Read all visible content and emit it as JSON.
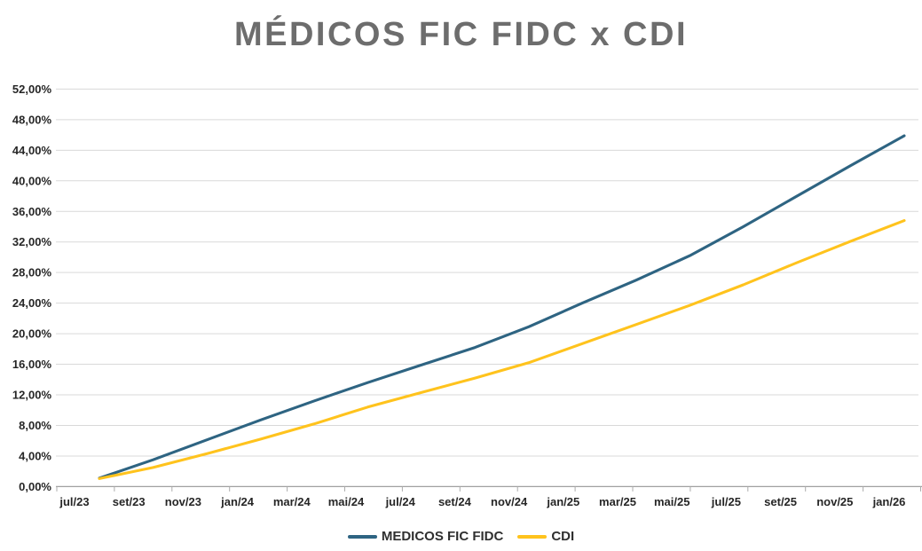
{
  "title": "MÉDICOS FIC FIDC x CDI",
  "chart_data": {
    "type": "line",
    "title": "MÉDICOS FIC FIDC x CDI",
    "categories": [
      "jul/23",
      "set/23",
      "nov/23",
      "jan/24",
      "mar/24",
      "mai/24",
      "jul/24",
      "set/24",
      "nov/24",
      "jan/25",
      "mar/25",
      "mai/25",
      "jul/25",
      "set/25",
      "nov/25",
      "jan/26"
    ],
    "series": [
      {
        "name": "MEDICOS FIC FIDC",
        "color": "#2E6482",
        "values": [
          1.1,
          3.5,
          6.1,
          8.7,
          11.2,
          13.6,
          15.9,
          18.2,
          20.9,
          24.0,
          27.0,
          30.2,
          34.0,
          38.0,
          42.0,
          45.9
        ]
      },
      {
        "name": "CDI",
        "color": "#FFC31D",
        "values": [
          1.05,
          2.5,
          4.3,
          6.2,
          8.2,
          10.4,
          12.3,
          14.2,
          16.2,
          18.7,
          21.2,
          23.7,
          26.4,
          29.3,
          32.1,
          34.8
        ]
      }
    ],
    "ylabel": "",
    "xlabel": "",
    "ylim": [
      0,
      52
    ],
    "y_tick_step": 4,
    "y_tick_labels": [
      "0,00%",
      "4,00%",
      "8,00%",
      "12,00%",
      "16,00%",
      "20,00%",
      "24,00%",
      "28,00%",
      "32,00%",
      "36,00%",
      "40,00%",
      "44,00%",
      "48,00%",
      "52,00%"
    ],
    "grid": true,
    "legend_position": "bottom"
  },
  "colors": {
    "title_text": "#6D6D6D",
    "axis_text": "#262626",
    "gridline": "#D9D9D9",
    "axis_line": "#A0A0A0",
    "tick_mark": "#ABABAB",
    "background": "#FFFFFF"
  }
}
